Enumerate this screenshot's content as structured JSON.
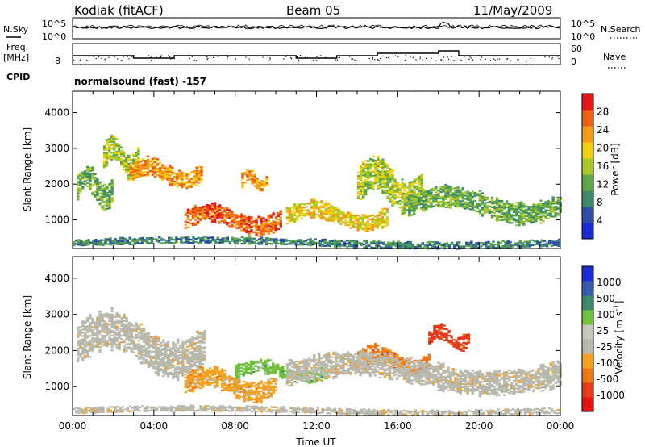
{
  "header": {
    "station": "Kodiak (fitACF)",
    "beam": "Beam 05",
    "date": "11/May/2009"
  },
  "status_panels": {
    "nsky_label": "N.Sky",
    "nsearch_label": "N.Search",
    "nsky_ticks": [
      "10^5",
      "10^0"
    ],
    "nsearch_ticks": [
      "10^5",
      "10^0"
    ],
    "freq_label": "Freq.",
    "freq_unit": "[MHz]",
    "freq_ticks": [
      "8"
    ],
    "nave_label": "Nave",
    "nave_ticks": [
      "60",
      "0"
    ],
    "cpid_label": "CPID",
    "cpid_text": "normalsound (fast) -157"
  },
  "colors": {
    "power_scale": [
      "#1a2bd8",
      "#2e4ea6",
      "#3d8b6a",
      "#5ea64a",
      "#a8c828",
      "#f0d010",
      "#f49a14",
      "#f06010",
      "#e81818"
    ],
    "velocity_scale": [
      "#1a2bd8",
      "#3a5ab0",
      "#3d8b6a",
      "#6fc23a",
      "#c8c8bc",
      "#b8b8ac",
      "#f4a020",
      "#f07814",
      "#e83a18",
      "#e81010"
    ]
  },
  "chart_data": [
    {
      "type": "heatmap",
      "panel": "power",
      "ylabel": "Slant Range [km]",
      "ylim": [
        200,
        4600
      ],
      "yticks": [
        "1000",
        "2000",
        "3000",
        "4000"
      ],
      "xlim": [
        "00:00",
        "24:00"
      ],
      "colorbar": {
        "label": "Power [dB]",
        "range": [
          0,
          32
        ],
        "ticks": [
          "4",
          "8",
          "12",
          "16",
          "20",
          "24",
          "28"
        ]
      },
      "echo_regions": [
        {
          "t_start": 0.2,
          "t_end": 2.0,
          "range_low": 1300,
          "range_high": 2500,
          "level": 12
        },
        {
          "t_start": 1.5,
          "t_end": 3.2,
          "range_low": 2200,
          "range_high": 3300,
          "level": 16
        },
        {
          "t_start": 2.8,
          "t_end": 6.3,
          "range_low": 1900,
          "range_high": 2700,
          "level": 24
        },
        {
          "t_start": 5.5,
          "t_end": 10.2,
          "range_low": 600,
          "range_high": 1400,
          "level": 28
        },
        {
          "t_start": 8.3,
          "t_end": 9.5,
          "range_low": 1800,
          "range_high": 2400,
          "level": 24
        },
        {
          "t_start": 10.5,
          "t_end": 15.5,
          "range_low": 700,
          "range_high": 1500,
          "level": 20
        },
        {
          "t_start": 14.0,
          "t_end": 17.2,
          "range_low": 1200,
          "range_high": 2700,
          "level": 16
        },
        {
          "t_start": 16.5,
          "t_end": 24.0,
          "range_low": 900,
          "range_high": 1900,
          "level": 12
        },
        {
          "t_start": 0.0,
          "t_end": 24.0,
          "range_low": 200,
          "range_high": 500,
          "level": 8
        }
      ]
    },
    {
      "type": "heatmap",
      "panel": "velocity",
      "ylabel": "Slant Range [km]",
      "ylim": [
        200,
        4600
      ],
      "yticks": [
        "1000",
        "2000",
        "3000",
        "4000"
      ],
      "xlim": [
        "00:00",
        "24:00"
      ],
      "xticks": [
        "00:00",
        "04:00",
        "08:00",
        "12:00",
        "16:00",
        "20:00",
        "00:00"
      ],
      "xlabel": "Time UT",
      "colorbar": {
        "label": "Velocity [m s^-1]",
        "ticks": [
          "1000",
          "500",
          "100",
          "25",
          "-25",
          "-100",
          "-500",
          "-1000"
        ]
      },
      "echo_regions": [
        {
          "t_start": 0.2,
          "t_end": 6.5,
          "range_low": 1300,
          "range_high": 3000,
          "velocity": 0
        },
        {
          "t_start": 5.5,
          "t_end": 10.0,
          "range_low": 600,
          "range_high": 1500,
          "velocity": -100
        },
        {
          "t_start": 8.0,
          "t_end": 12.5,
          "range_low": 1100,
          "range_high": 1700,
          "velocity": 150
        },
        {
          "t_start": 14.0,
          "t_end": 17.5,
          "range_low": 1300,
          "range_high": 2100,
          "velocity": -200
        },
        {
          "t_start": 17.5,
          "t_end": 19.5,
          "range_low": 2000,
          "range_high": 2700,
          "velocity": -400
        },
        {
          "t_start": 10.5,
          "t_end": 24.0,
          "range_low": 800,
          "range_high": 1900,
          "velocity": 0
        },
        {
          "t_start": 0.0,
          "t_end": 24.0,
          "range_low": 200,
          "range_high": 450,
          "velocity": 0
        }
      ]
    }
  ]
}
